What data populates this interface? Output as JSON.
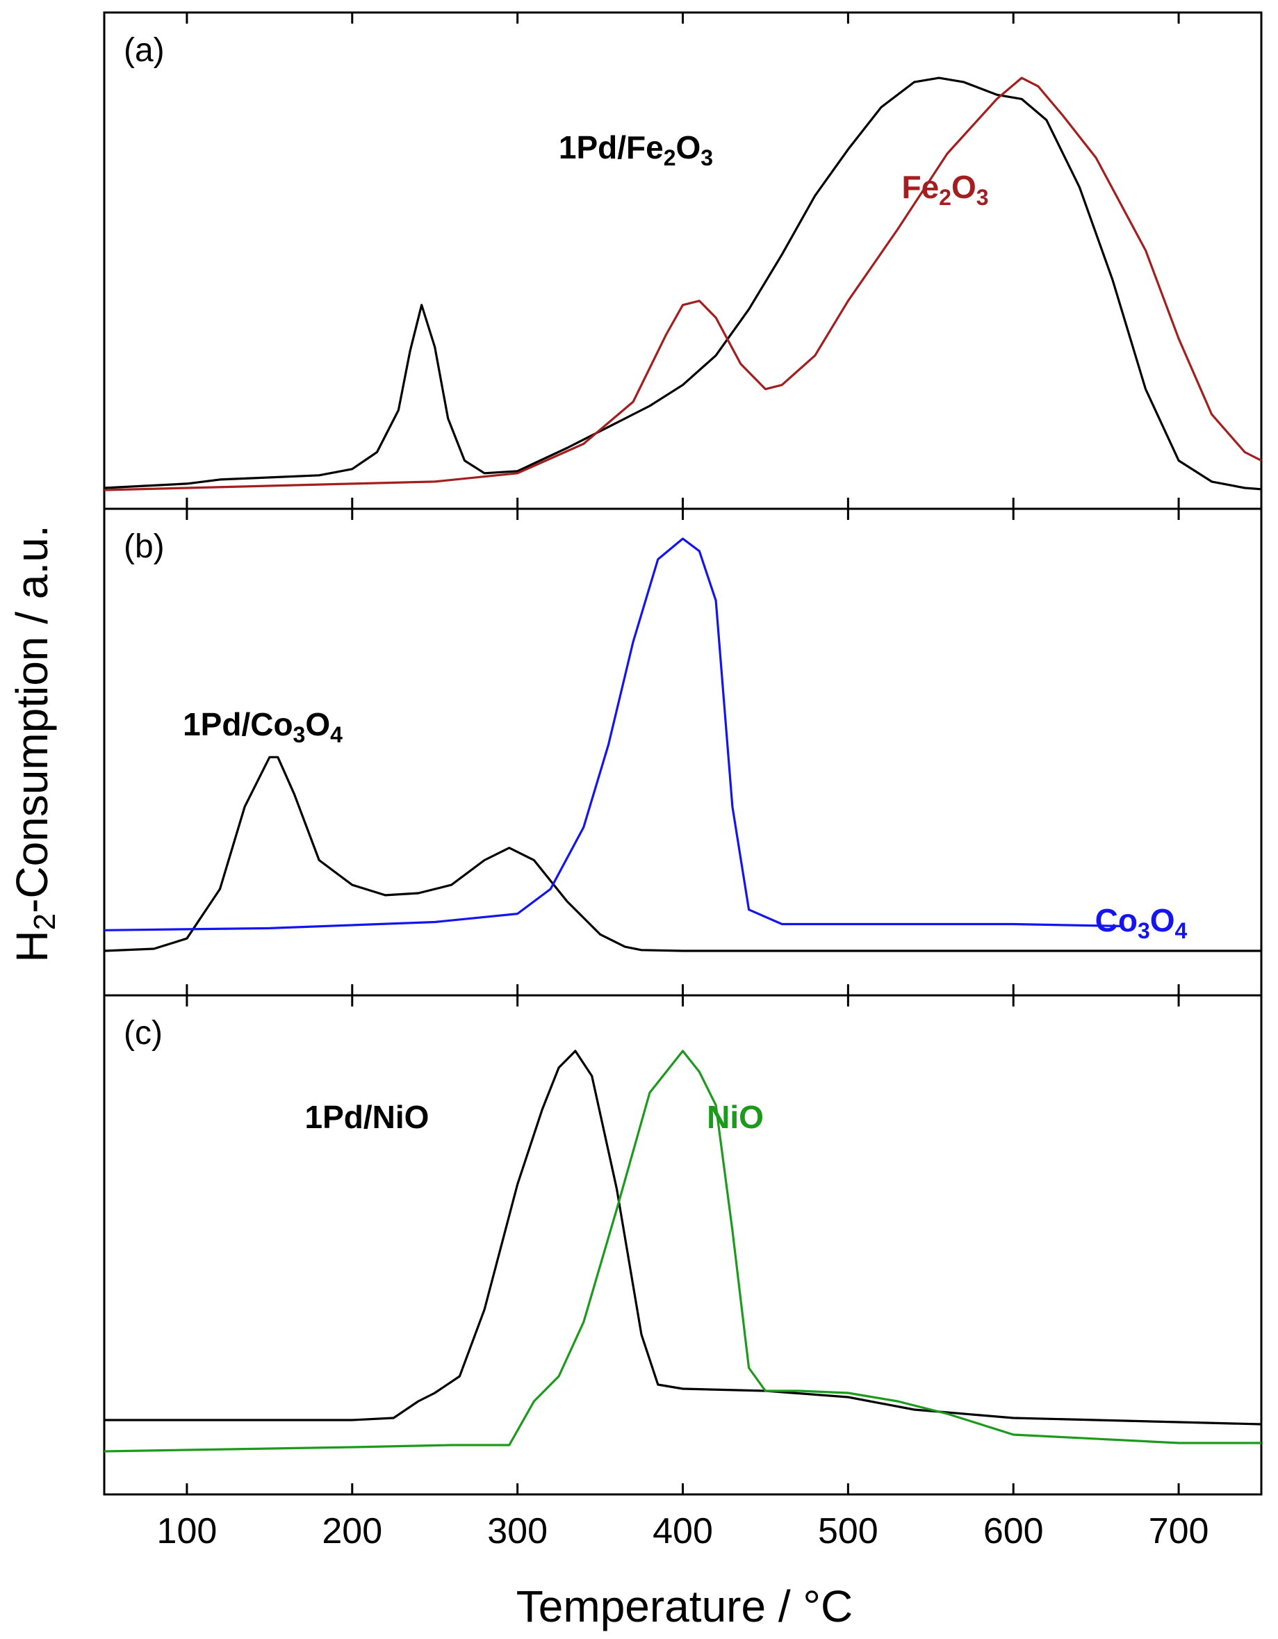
{
  "chart_data": {
    "type": "line",
    "xlabel": "Temperature / °C",
    "ylabel": "H₂-Consumption / a.u.",
    "xlim": [
      50,
      750
    ],
    "xticks": [
      100,
      200,
      300,
      400,
      500,
      600,
      700
    ],
    "x_tick_labels": [
      "100",
      "200",
      "300",
      "400",
      "500",
      "600",
      "700"
    ],
    "panels": [
      {
        "id": "a",
        "title": "(a)",
        "ylim": [
          0,
          1
        ],
        "series": [
          {
            "name": "1Pd/Fe2O3",
            "label": {
              "text": "1Pd/Fe",
              "sub1": "2",
              "mid": "O",
              "sub2": "3"
            },
            "color": "#000000",
            "x": [
              50,
              100,
              120,
              150,
              180,
              200,
              215,
              228,
              235,
              242,
              250,
              258,
              268,
              280,
              300,
              330,
              360,
              380,
              400,
              420,
              440,
              460,
              480,
              500,
              520,
              540,
              555,
              570,
              590,
              605,
              620,
              640,
              660,
              680,
              700,
              720,
              740,
              750
            ],
            "y": [
              0.005,
              0.015,
              0.025,
              0.03,
              0.035,
              0.05,
              0.09,
              0.19,
              0.33,
              0.44,
              0.34,
              0.17,
              0.07,
              0.04,
              0.045,
              0.1,
              0.16,
              0.2,
              0.25,
              0.32,
              0.43,
              0.56,
              0.7,
              0.81,
              0.91,
              0.97,
              0.98,
              0.97,
              0.94,
              0.93,
              0.88,
              0.72,
              0.5,
              0.24,
              0.07,
              0.02,
              0.005,
              0.002
            ]
          },
          {
            "name": "Fe2O3",
            "label": {
              "text": "Fe",
              "sub1": "2",
              "mid": "O",
              "sub2": "3"
            },
            "color": "#a31f1f",
            "x": [
              50,
              100,
              200,
              250,
              300,
              340,
              370,
              390,
              400,
              410,
              420,
              435,
              450,
              460,
              480,
              500,
              530,
              560,
              590,
              605,
              615,
              630,
              650,
              680,
              700,
              720,
              740,
              750
            ],
            "y": [
              0.0,
              0.005,
              0.015,
              0.02,
              0.04,
              0.11,
              0.21,
              0.37,
              0.44,
              0.45,
              0.41,
              0.3,
              0.24,
              0.25,
              0.32,
              0.45,
              0.62,
              0.8,
              0.93,
              0.98,
              0.96,
              0.89,
              0.79,
              0.57,
              0.36,
              0.18,
              0.09,
              0.07
            ]
          }
        ],
        "annotations": []
      },
      {
        "id": "b",
        "title": "(b)",
        "ylim": [
          0,
          1
        ],
        "series": [
          {
            "name": "1Pd/Co3O4",
            "label": {
              "text": "1Pd/Co",
              "sub1": "3",
              "mid": "O",
              "sub2": "4"
            },
            "color": "#000000",
            "x": [
              50,
              80,
              100,
              120,
              135,
              150,
              155,
              165,
              180,
              200,
              220,
              240,
              260,
              280,
              295,
              310,
              330,
              350,
              365,
              375,
              400,
              500,
              600,
              750
            ],
            "y": [
              0.0,
              0.005,
              0.03,
              0.15,
              0.35,
              0.47,
              0.47,
              0.38,
              0.22,
              0.16,
              0.135,
              0.14,
              0.16,
              0.22,
              0.25,
              0.22,
              0.12,
              0.04,
              0.01,
              0.002,
              0.0,
              0.0,
              0.0,
              0.0
            ]
          },
          {
            "name": "Co3O4",
            "label": {
              "text": "Co",
              "sub1": "3",
              "mid": "O",
              "sub2": "4"
            },
            "color": "#1414f0",
            "x": [
              50,
              150,
              250,
              300,
              320,
              340,
              355,
              370,
              385,
              400,
              410,
              420,
              430,
              440,
              460,
              500,
              600,
              665
            ],
            "y": [
              0.05,
              0.055,
              0.07,
              0.09,
              0.15,
              0.3,
              0.5,
              0.75,
              0.95,
              1.0,
              0.97,
              0.85,
              0.35,
              0.1,
              0.065,
              0.065,
              0.065,
              0.06
            ]
          }
        ],
        "annotations": []
      },
      {
        "id": "c",
        "title": "(c)",
        "ylim": [
          0,
          1
        ],
        "series": [
          {
            "name": "1Pd/NiO",
            "label": {
              "text": "1Pd/NiO",
              "sub1": "",
              "mid": "",
              "sub2": ""
            },
            "color": "#000000",
            "x": [
              50,
              200,
              225,
              240,
              250,
              265,
              280,
              300,
              315,
              325,
              335,
              345,
              360,
              375,
              385,
              400,
              450,
              500,
              540,
              600,
              700,
              750
            ],
            "y": [
              0.095,
              0.095,
              0.1,
              0.14,
              0.16,
              0.2,
              0.36,
              0.66,
              0.84,
              0.94,
              0.98,
              0.92,
              0.65,
              0.3,
              0.18,
              0.17,
              0.165,
              0.15,
              0.12,
              0.1,
              0.09,
              0.085
            ]
          },
          {
            "name": "NiO",
            "label": {
              "text": "NiO",
              "sub1": "",
              "mid": "",
              "sub2": ""
            },
            "color": "#1c9a1c",
            "x": [
              50,
              200,
              260,
              295,
              310,
              325,
              340,
              360,
              380,
              400,
              410,
              420,
              430,
              440,
              450,
              470,
              500,
              530,
              560,
              600,
              700,
              750
            ],
            "y": [
              0.02,
              0.03,
              0.035,
              0.035,
              0.14,
              0.2,
              0.33,
              0.6,
              0.88,
              0.98,
              0.93,
              0.85,
              0.55,
              0.22,
              0.165,
              0.165,
              0.16,
              0.14,
              0.11,
              0.06,
              0.04,
              0.04
            ]
          }
        ],
        "annotations": []
      }
    ]
  }
}
